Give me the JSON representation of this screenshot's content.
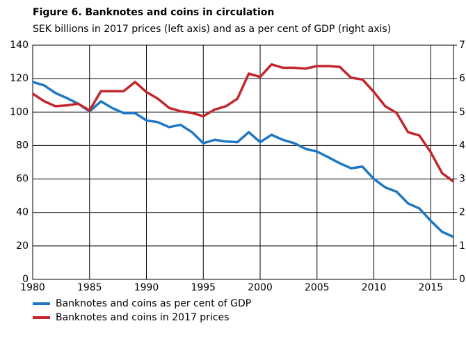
{
  "chart_data": {
    "type": "line",
    "title": "Figure 6. Banknotes and coins in circulation",
    "subtitle": "SEK billions in 2017 prices (left axis) and as a per cent of GDP (right axis)",
    "x": [
      1980,
      1981,
      1982,
      1983,
      1984,
      1985,
      1986,
      1987,
      1988,
      1989,
      1990,
      1991,
      1992,
      1993,
      1994,
      1995,
      1996,
      1997,
      1998,
      1999,
      2000,
      2001,
      2002,
      2003,
      2004,
      2005,
      2006,
      2007,
      2008,
      2009,
      2010,
      2011,
      2012,
      2013,
      2014,
      2015,
      2016,
      2017
    ],
    "xlim": [
      1980,
      2017
    ],
    "xticks": [
      1980,
      1985,
      1990,
      1995,
      2000,
      2005,
      2010,
      2015
    ],
    "ylim": [
      0,
      140
    ],
    "yticks": [
      0,
      20,
      40,
      60,
      80,
      100,
      120,
      140
    ],
    "y2lim": [
      0,
      7
    ],
    "y2ticks": [
      0,
      1,
      2,
      3,
      4,
      5,
      6,
      7
    ],
    "grid": true,
    "legend": "bottom-left",
    "series": [
      {
        "name": "Banknotes and coins as per cent of GDP",
        "color": "#1f78c1",
        "axis": "y2",
        "values": [
          5.9,
          5.8,
          5.57,
          5.42,
          5.25,
          5.02,
          5.32,
          5.12,
          4.97,
          4.97,
          4.75,
          4.7,
          4.55,
          4.62,
          4.4,
          4.07,
          4.17,
          4.12,
          4.1,
          4.4,
          4.1,
          4.32,
          4.17,
          4.07,
          3.9,
          3.82,
          3.65,
          3.47,
          3.32,
          3.37,
          3.0,
          2.75,
          2.62,
          2.27,
          2.12,
          1.75,
          1.42,
          1.27
        ]
      },
      {
        "name": "Banknotes and coins in 2017 prices",
        "color": "#c1272d",
        "values": [
          111,
          106.5,
          103.5,
          104,
          105,
          101,
          112.5,
          112.5,
          112.5,
          118,
          112,
          108,
          102.5,
          100.5,
          99.5,
          97.5,
          101.5,
          103.5,
          108,
          123,
          121,
          128.5,
          126.5,
          126.5,
          126,
          127.5,
          127.5,
          127,
          120.5,
          119.5,
          112,
          103.5,
          99.5,
          88,
          86,
          76,
          63.5,
          58.5
        ]
      }
    ]
  }
}
